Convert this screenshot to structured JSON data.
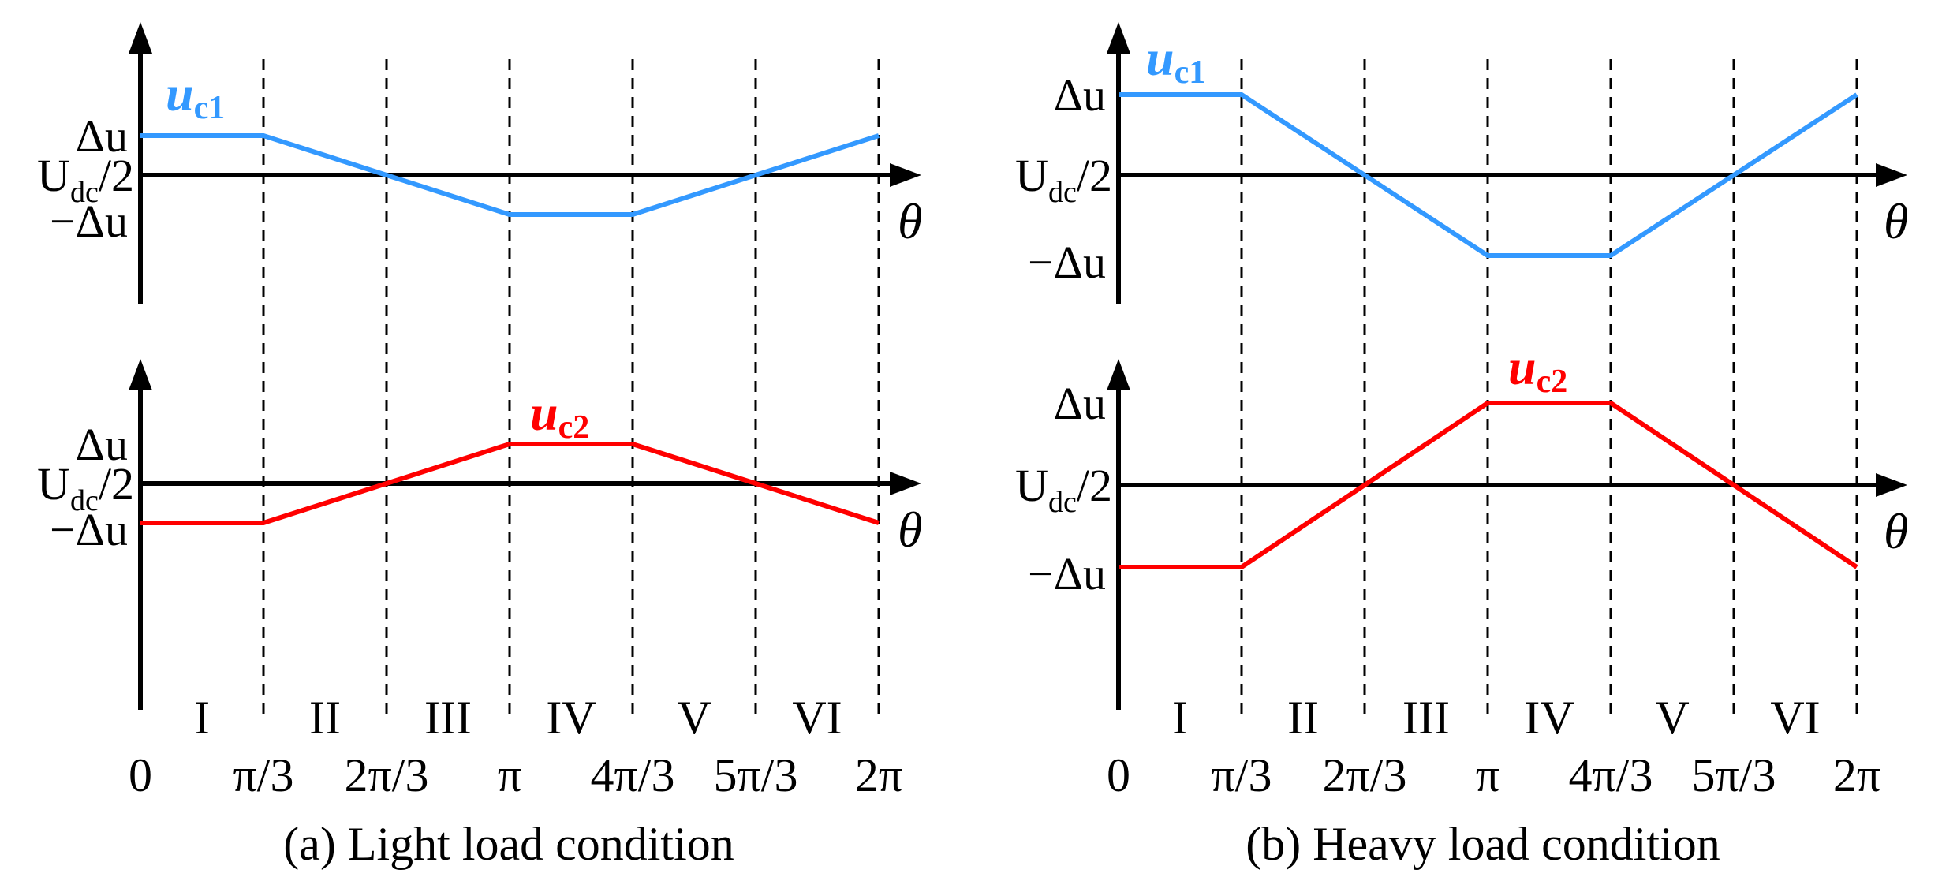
{
  "chart_data": [
    {
      "type": "line",
      "caption": "(a) Light load condition",
      "xlabel": "θ",
      "x_ticks": [
        "0",
        "π/3",
        "2π/3",
        "π",
        "4π/3",
        "5π/3",
        "2π"
      ],
      "regions": [
        "I",
        "II",
        "III",
        "IV",
        "V",
        "VI"
      ],
      "y_levels": {
        "top": {
          "main": "Δu",
          "sub": ""
        },
        "mid": {
          "main": "U",
          "sub": "dc",
          "tail": "/2"
        },
        "bottom": {
          "main": "−Δu",
          "sub": ""
        }
      },
      "ylim": [
        -1.6,
        3.4
      ],
      "plots": [
        {
          "name": "u",
          "subscript": "c1",
          "color": "#3399ff",
          "x": [
            0,
            1,
            2,
            3,
            4,
            5,
            6
          ],
          "y": [
            1,
            1,
            0,
            -1,
            -1,
            0,
            1
          ]
        },
        {
          "name": "u",
          "subscript": "c2",
          "color": "#ff0000",
          "x": [
            0,
            1,
            2,
            3,
            4,
            5,
            6
          ],
          "y": [
            -1,
            -1,
            0,
            1,
            1,
            0,
            -1
          ]
        }
      ]
    },
    {
      "type": "line",
      "caption": "(b) Heavy load condition",
      "xlabel": "θ",
      "x_ticks": [
        "0",
        "π/3",
        "2π/3",
        "π",
        "4π/3",
        "5π/3",
        "2π"
      ],
      "regions": [
        "I",
        "II",
        "III",
        "IV",
        "V",
        "VI"
      ],
      "y_levels": {
        "top": {
          "main": "Δu",
          "sub": ""
        },
        "mid": {
          "main": "U",
          "sub": "dc",
          "tail": "/2"
        },
        "bottom": {
          "main": "−Δu",
          "sub": ""
        }
      },
      "ylim": [
        -1.6,
        3.4
      ],
      "plots": [
        {
          "name": "u",
          "subscript": "c1",
          "color": "#3399ff",
          "x": [
            0,
            1,
            2,
            3,
            4,
            5,
            6
          ],
          "y": [
            1,
            1,
            0,
            -1,
            -1,
            0,
            1
          ]
        },
        {
          "name": "u",
          "subscript": "c2",
          "color": "#ff0000",
          "x": [
            0,
            1,
            2,
            3,
            4,
            5,
            6
          ],
          "y": [
            -1,
            -1,
            0,
            1,
            1,
            0,
            -1
          ]
        }
      ]
    }
  ]
}
